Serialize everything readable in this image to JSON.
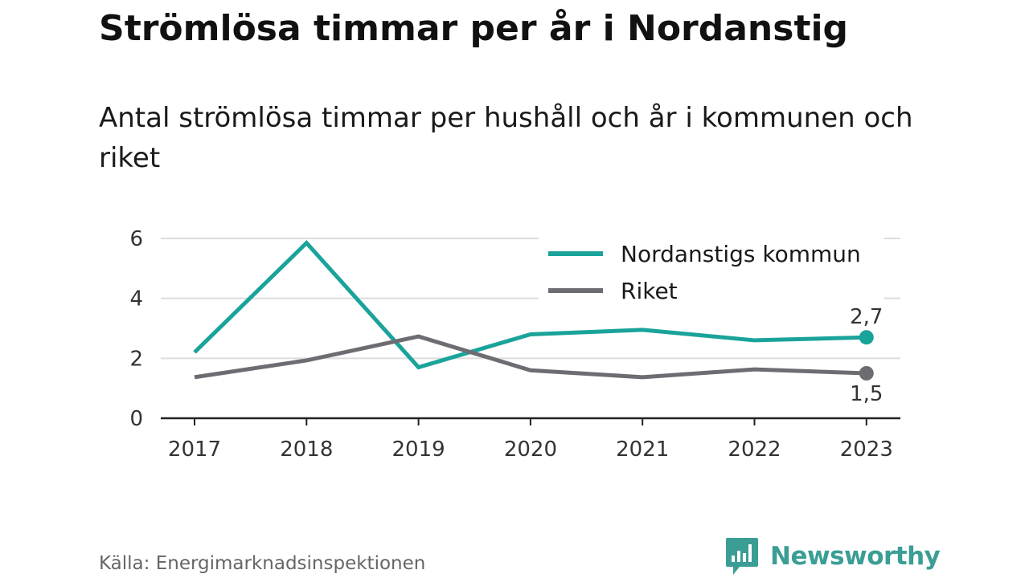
{
  "title": "Strömlösa timmar per år i Nordanstig",
  "subtitle": "Antal strömlösa timmar per hushåll och år i kommunen och riket",
  "source": "Källa: Energimarknadsinspektionen",
  "brand": {
    "name": "Newsworthy",
    "icon": "newsworthy-logo-icon",
    "color": "#3a9e95"
  },
  "chart_data": {
    "type": "line",
    "x": [
      "2017",
      "2018",
      "2019",
      "2020",
      "2021",
      "2022",
      "2023"
    ],
    "ylim": [
      0,
      6
    ],
    "yticks": [
      "0",
      "2",
      "4",
      "6"
    ],
    "grid": true,
    "legend_position": "top-right",
    "series": [
      {
        "name": "Nordanstigs kommun",
        "color": "#1aa39a",
        "values": [
          2.2,
          5.85,
          1.7,
          2.8,
          2.95,
          2.6,
          2.7
        ],
        "end_label": "2,7",
        "end_label_position": "above"
      },
      {
        "name": "Riket",
        "color": "#6d6c72",
        "values": [
          1.37,
          1.93,
          2.73,
          1.6,
          1.37,
          1.63,
          1.5
        ],
        "end_label": "1,5",
        "end_label_position": "below"
      }
    ]
  }
}
